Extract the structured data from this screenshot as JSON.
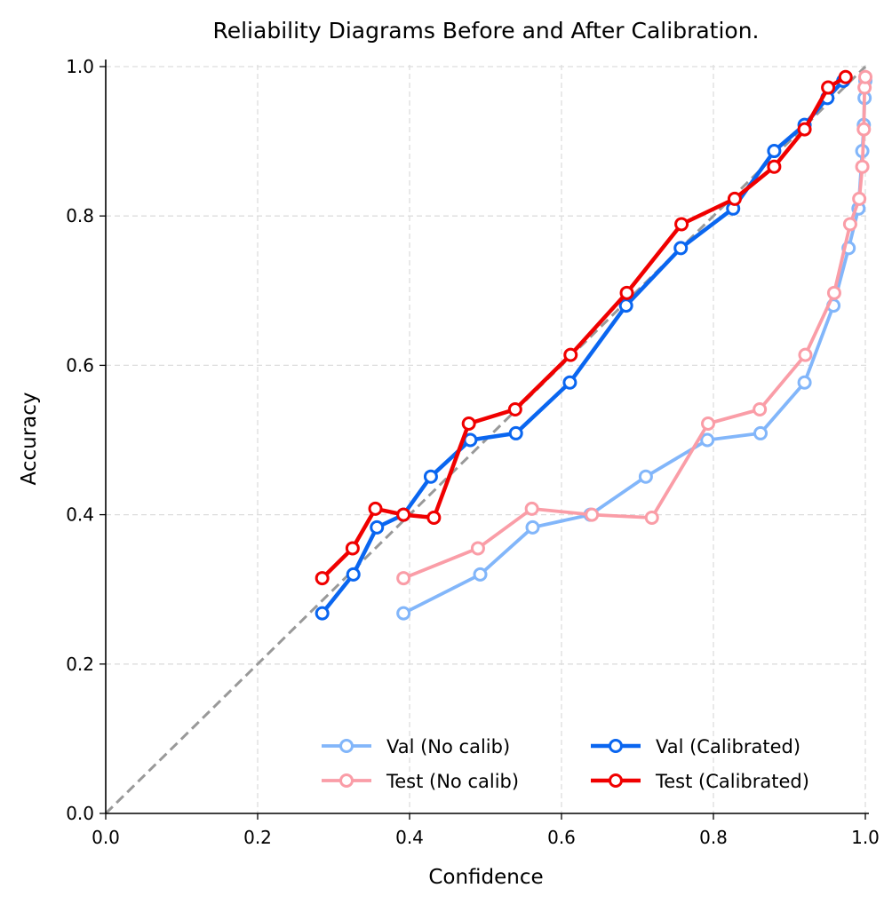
{
  "chart_data": {
    "type": "line",
    "title": "Reliability Diagrams Before and After Calibration.",
    "xlabel": "Confidence",
    "ylabel": "Accuracy",
    "xlim": [
      0.0,
      1.0
    ],
    "ylim": [
      0.0,
      1.0
    ],
    "xticks": [
      "0.0",
      "0.2",
      "0.4",
      "0.6",
      "0.8",
      "1.0"
    ],
    "yticks": [
      "0.0",
      "0.2",
      "0.4",
      "0.6",
      "0.8",
      "1.0"
    ],
    "grid": true,
    "legend_position": "lower-right",
    "reference_line": {
      "name": "perfect-calibration",
      "color": "#999999",
      "x": [
        0,
        1
      ],
      "y": [
        0,
        1
      ]
    },
    "series": [
      {
        "name": "Val (No calib)",
        "color": "#82b6fa",
        "x": [
          0.392,
          0.493,
          0.562,
          0.638,
          0.711,
          0.792,
          0.862,
          0.92,
          0.958,
          0.978,
          0.991,
          0.996,
          0.998,
          0.999,
          1.0
        ],
        "y": [
          0.268,
          0.32,
          0.383,
          0.4,
          0.451,
          0.5,
          0.509,
          0.577,
          0.68,
          0.757,
          0.81,
          0.887,
          0.922,
          0.958,
          0.981
        ]
      },
      {
        "name": "Test (No calib)",
        "color": "#fa9da7",
        "x": [
          0.392,
          0.49,
          0.561,
          0.64,
          0.719,
          0.793,
          0.861,
          0.921,
          0.959,
          0.98,
          0.992,
          0.996,
          0.998,
          0.999,
          1.0
        ],
        "y": [
          0.315,
          0.355,
          0.408,
          0.4,
          0.396,
          0.522,
          0.541,
          0.614,
          0.697,
          0.789,
          0.823,
          0.866,
          0.916,
          0.972,
          0.986
        ]
      },
      {
        "name": "Val (Calibrated)",
        "color": "#0a66f0",
        "x": [
          0.285,
          0.326,
          0.357,
          0.392,
          0.428,
          0.48,
          0.54,
          0.611,
          0.685,
          0.757,
          0.826,
          0.88,
          0.92,
          0.95,
          0.971
        ],
        "y": [
          0.268,
          0.32,
          0.383,
          0.4,
          0.451,
          0.5,
          0.509,
          0.577,
          0.68,
          0.757,
          0.81,
          0.887,
          0.922,
          0.958,
          0.981
        ]
      },
      {
        "name": "Test (Calibrated)",
        "color": "#f00000",
        "x": [
          0.285,
          0.325,
          0.355,
          0.392,
          0.432,
          0.478,
          0.539,
          0.612,
          0.686,
          0.758,
          0.828,
          0.88,
          0.92,
          0.951,
          0.974
        ],
        "y": [
          0.315,
          0.355,
          0.408,
          0.4,
          0.396,
          0.522,
          0.541,
          0.614,
          0.697,
          0.789,
          0.823,
          0.866,
          0.916,
          0.972,
          0.986
        ]
      }
    ]
  }
}
